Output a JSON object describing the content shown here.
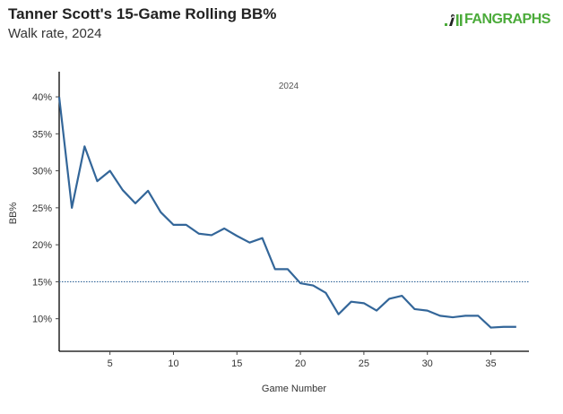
{
  "header": {
    "title": "Tanner Scott's 15-Game Rolling BB%",
    "subtitle": "Walk rate, 2024",
    "logo_text": "FANGRAPHS"
  },
  "chart_data": {
    "type": "line",
    "title": "Tanner Scott's 15-Game Rolling BB%",
    "subtitle": "Walk rate, 2024",
    "xlabel": "Game Number",
    "ylabel": "BB%",
    "annotation": "2024",
    "x": [
      1,
      2,
      3,
      4,
      5,
      6,
      7,
      8,
      9,
      10,
      11,
      12,
      13,
      14,
      15,
      16,
      17,
      18,
      19,
      20,
      21,
      22,
      23,
      24,
      25,
      26,
      27,
      28,
      29,
      30,
      31,
      32,
      33,
      34,
      35,
      36,
      37
    ],
    "series": [
      {
        "name": "2024",
        "color": "#336699",
        "values": [
          40.0,
          25.0,
          33.3,
          28.6,
          30.0,
          27.4,
          25.6,
          27.3,
          24.4,
          22.7,
          22.7,
          21.5,
          21.3,
          22.2,
          21.2,
          20.3,
          20.9,
          16.7,
          16.7,
          14.8,
          14.5,
          13.5,
          10.6,
          12.3,
          12.1,
          11.1,
          12.7,
          13.1,
          11.3,
          11.1,
          10.4,
          10.2,
          10.4,
          10.4,
          8.8,
          8.9,
          8.9
        ]
      }
    ],
    "reference_line": {
      "value": 15,
      "style": "dotted",
      "color": "#336699"
    },
    "xticks": [
      5,
      10,
      15,
      20,
      25,
      30,
      35
    ],
    "xtick_labels": [
      "5",
      "10",
      "15",
      "20",
      "25",
      "30",
      "35"
    ],
    "yticks": [
      10,
      15,
      20,
      25,
      30,
      35,
      40
    ],
    "ytick_labels": [
      "10%",
      "15%",
      "20%",
      "25%",
      "30%",
      "35%",
      "40%"
    ],
    "xlim": [
      1,
      38
    ],
    "ylim": [
      5.6,
      43.4
    ],
    "grid": false
  }
}
